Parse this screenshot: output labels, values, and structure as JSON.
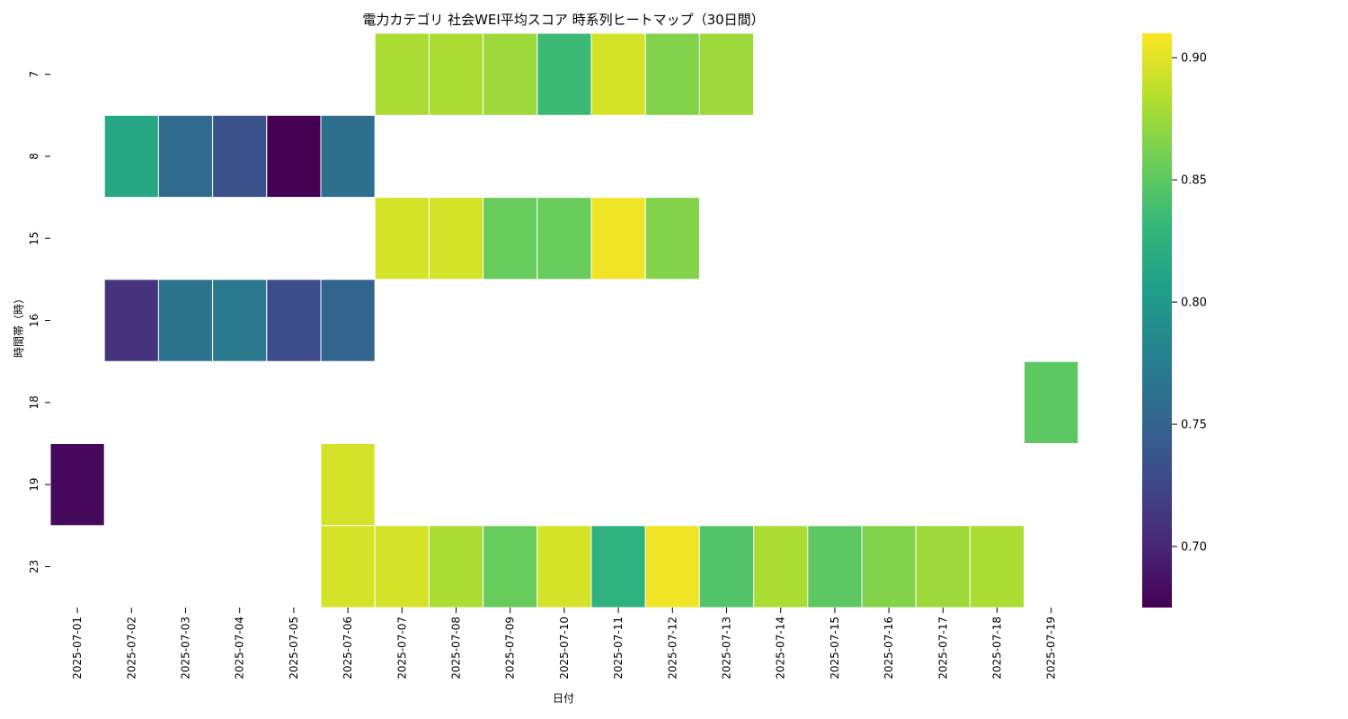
{
  "chart_data": {
    "type": "heatmap",
    "title": "電力カテゴリ 社会WEI平均スコア 時系列ヒートマップ（30日間）",
    "xlabel": "日付",
    "ylabel": "時間帯（時）",
    "x": [
      "2025-07-01",
      "2025-07-02",
      "2025-07-03",
      "2025-07-04",
      "2025-07-05",
      "2025-07-06",
      "2025-07-07",
      "2025-07-08",
      "2025-07-09",
      "2025-07-10",
      "2025-07-11",
      "2025-07-12",
      "2025-07-13",
      "2025-07-14",
      "2025-07-15",
      "2025-07-16",
      "2025-07-17",
      "2025-07-18",
      "2025-07-19"
    ],
    "y": [
      "7",
      "8",
      "15",
      "16",
      "18",
      "19",
      "23"
    ],
    "values": [
      [
        null,
        null,
        null,
        null,
        null,
        null,
        0.88,
        0.88,
        0.875,
        0.835,
        0.895,
        0.865,
        0.875,
        null,
        null,
        null,
        null,
        null,
        null
      ],
      [
        null,
        0.815,
        0.755,
        0.735,
        0.675,
        0.76,
        null,
        null,
        null,
        null,
        null,
        null,
        null,
        null,
        null,
        null,
        null,
        null,
        null
      ],
      [
        null,
        null,
        null,
        null,
        null,
        null,
        0.895,
        0.895,
        0.855,
        0.855,
        0.905,
        0.865,
        null,
        null,
        null,
        null,
        null,
        null,
        null
      ],
      [
        null,
        0.71,
        0.765,
        0.77,
        0.73,
        0.75,
        null,
        null,
        null,
        null,
        null,
        null,
        null,
        null,
        null,
        null,
        null,
        null,
        null
      ],
      [
        null,
        null,
        null,
        null,
        null,
        null,
        null,
        null,
        null,
        null,
        null,
        null,
        null,
        null,
        null,
        null,
        null,
        null,
        0.85
      ],
      [
        0.68,
        null,
        null,
        null,
        null,
        0.895,
        null,
        null,
        null,
        null,
        null,
        null,
        null,
        null,
        null,
        null,
        null,
        null,
        null
      ],
      [
        null,
        null,
        null,
        null,
        null,
        0.895,
        0.895,
        0.88,
        0.855,
        0.895,
        0.825,
        0.905,
        0.845,
        0.88,
        0.85,
        0.865,
        0.875,
        0.88,
        null
      ]
    ],
    "colormap": "viridis",
    "vmin": 0.675,
    "vmax": 0.91,
    "colorbar_ticks": [
      "0.70",
      "0.75",
      "0.80",
      "0.85",
      "0.90"
    ],
    "grid": false
  }
}
